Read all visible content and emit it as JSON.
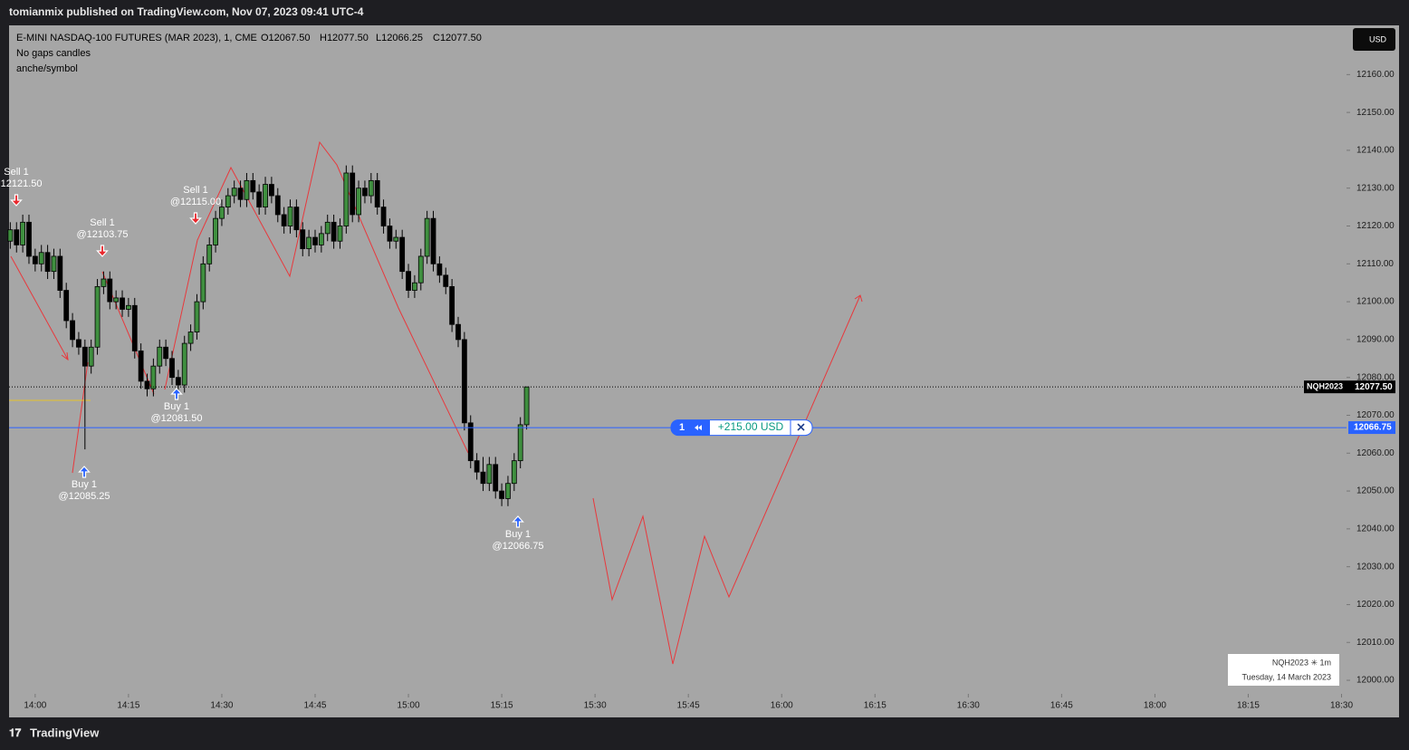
{
  "header": {
    "publisher": "tomianmix published on TradingView.com, Nov 07, 2023 09:41 UTC-4"
  },
  "chart_data": {
    "type": "candlestick",
    "legend": {
      "symbol": "E-MINI NASDAQ-100 FUTURES (MAR 2023), 1, CME",
      "open": "O12067.50",
      "high": "H12077.50",
      "low": "L12066.25",
      "close": "C12077.50"
    },
    "indicators": [
      "No gaps candles",
      "anche/symbol"
    ],
    "currency": "USD",
    "open": [
      12116,
      12119,
      12115,
      12121,
      12112,
      12110,
      12113,
      12108,
      12112,
      12103,
      12095,
      12090,
      12088,
      12083,
      12088,
      12104,
      12106,
      12100,
      12101,
      12098,
      12099,
      12087,
      12079,
      12077,
      12083,
      12088,
      12085,
      12080,
      12078,
      12089,
      12092,
      12100,
      12110,
      12115,
      12122,
      12125,
      12128,
      12130,
      12127,
      12132,
      12129,
      12125,
      12131,
      12128,
      12123,
      12120,
      12125,
      12119,
      12114,
      12117,
      12115,
      12118,
      12121,
      12116,
      12120,
      12134,
      12123,
      12130,
      12128,
      12132,
      12125,
      12120,
      12116,
      12117,
      12108,
      12103,
      12105,
      12112,
      12122,
      12110,
      12107,
      12104,
      12094,
      12090,
      12068,
      12058,
      12055,
      12052,
      12057,
      12050,
      12048,
      12052,
      12058,
      12067.5
    ],
    "high": [
      12121,
      12121,
      12123,
      12123,
      12114,
      12115,
      12115,
      12114,
      12114,
      12105,
      12097,
      12092,
      12090,
      12090,
      12106,
      12108,
      12108,
      12103,
      12103,
      12101,
      12101,
      12089,
      12081,
      12085,
      12090,
      12090,
      12087,
      12082,
      12091,
      12094,
      12102,
      12112,
      12117,
      12124,
      12127,
      12130,
      12132,
      12132,
      12134,
      12134,
      12131,
      12133,
      12133,
      12130,
      12125,
      12127,
      12127,
      12121,
      12119,
      12119,
      12120,
      12123,
      12123,
      12122,
      12136,
      12136,
      12132,
      12132,
      12134,
      12134,
      12127,
      12122,
      12119,
      12119,
      12110,
      12107,
      12114,
      12124,
      12124,
      12112,
      12109,
      12106,
      12096,
      12092,
      12070,
      12060,
      12059,
      12059,
      12059,
      12052,
      12054,
      12060,
      12069.5,
      12077.5
    ],
    "low": [
      12114,
      12113,
      12113,
      12110,
      12108,
      12108,
      12106,
      12106,
      12101,
      12093,
      12088,
      12086,
      12061,
      12081,
      12086,
      12102,
      12098,
      12098,
      12096,
      12096,
      12085,
      12077,
      12075,
      12075,
      12081,
      12083,
      12078,
      12076,
      12076,
      12087,
      12090,
      12098,
      12108,
      12113,
      12120,
      12123,
      12126,
      12125,
      12125,
      12127,
      12123,
      12123,
      12126,
      12121,
      12118,
      12118,
      12117,
      12112,
      12112,
      12113,
      12113,
      12116,
      12114,
      12114,
      12118,
      12121,
      12121,
      12126,
      12126,
      12123,
      12118,
      12114,
      12114,
      12106,
      12101,
      12101,
      12103,
      12110,
      12108,
      12105,
      12102,
      12092,
      12088,
      12066,
      12056,
      12053,
      12050,
      12050,
      12048,
      12046,
      12046,
      12050,
      12056,
      12066.25
    ],
    "close": [
      12119,
      12115,
      12121,
      12112,
      12110,
      12113,
      12108,
      12112,
      12103,
      12095,
      12090,
      12088,
      12083,
      12088,
      12104,
      12106,
      12100,
      12101,
      12098,
      12099,
      12087,
      12079,
      12077,
      12083,
      12088,
      12085,
      12080,
      12078,
      12089,
      12092,
      12100,
      12110,
      12115,
      12122,
      12125,
      12128,
      12130,
      12127,
      12132,
      12129,
      12125,
      12131,
      12128,
      12123,
      12120,
      12125,
      12119,
      12114,
      12117,
      12115,
      12118,
      12121,
      12116,
      12120,
      12134,
      12123,
      12130,
      12128,
      12132,
      12125,
      12120,
      12116,
      12117,
      12108,
      12103,
      12105,
      12112,
      12122,
      12110,
      12107,
      12104,
      12094,
      12090,
      12068,
      12058,
      12055,
      12052,
      12057,
      12050,
      12048,
      12052,
      12058,
      12067.5,
      12077.5
    ],
    "up_color": "#3f8f3f",
    "down_color": "#000000",
    "xlim": [
      -0.2,
      214.8
    ],
    "xticks": [
      {
        "value": 4,
        "label": "14:00"
      },
      {
        "value": 19,
        "label": "14:15"
      },
      {
        "value": 34,
        "label": "14:30"
      },
      {
        "value": 49,
        "label": "14:45"
      },
      {
        "value": 64,
        "label": "15:00"
      },
      {
        "value": 79,
        "label": "15:15"
      },
      {
        "value": 94,
        "label": "15:30"
      },
      {
        "value": 109,
        "label": "15:45"
      },
      {
        "value": 124,
        "label": "16:00"
      },
      {
        "value": 139,
        "label": "16:15"
      },
      {
        "value": 154,
        "label": "16:30"
      },
      {
        "value": 169,
        "label": "16:45"
      },
      {
        "value": 184,
        "label": "18:00"
      },
      {
        "value": 199,
        "label": "18:15"
      },
      {
        "value": 214,
        "label": "18:30"
      }
    ],
    "ylim": [
      11990.2,
      12173
    ],
    "yticks": [
      {
        "value": 12000,
        "label": "12000.00"
      },
      {
        "value": 12010,
        "label": "12010.00"
      },
      {
        "value": 12020,
        "label": "12020.00"
      },
      {
        "value": 12030,
        "label": "12030.00"
      },
      {
        "value": 12040,
        "label": "12040.00"
      },
      {
        "value": 12050,
        "label": "12050.00"
      },
      {
        "value": 12060,
        "label": "12060.00"
      },
      {
        "value": 12070,
        "label": "12070.00"
      },
      {
        "value": 12080,
        "label": "12080.00"
      },
      {
        "value": 12090,
        "label": "12090.00"
      },
      {
        "value": 12100,
        "label": "12100.00"
      },
      {
        "value": 12110,
        "label": "12110.00"
      },
      {
        "value": 12120,
        "label": "12120.00"
      },
      {
        "value": 12130,
        "label": "12130.00"
      },
      {
        "value": 12140,
        "label": "12140.00"
      },
      {
        "value": 12150,
        "label": "12150.00"
      },
      {
        "value": 12160,
        "label": "12160.00"
      }
    ],
    "last_price": {
      "symbol": "NQH2023",
      "value": 12077.5,
      "label": "12077.50"
    },
    "position": {
      "value": 12066.75,
      "label": "12066.75",
      "quantity": "1",
      "pnl": "+215.00 USD"
    },
    "trades": [
      {
        "text": "Sell 1",
        "price": "@12121.50"
      },
      {
        "text": "Sell 1",
        "price": "@12103.75"
      },
      {
        "text": "Buy 1",
        "price": "@12085.25"
      },
      {
        "text": "Sell 1",
        "price": "@12115.00"
      },
      {
        "text": "Buy 1",
        "price": "@12081.50"
      },
      {
        "text": "Buy 1",
        "price": "@12066.75"
      }
    ],
    "info_box": {
      "symbol": "NQH2023 ✳ 1m",
      "date": "Tuesday, 14 March 2023"
    }
  },
  "footer": {
    "brand": "TradingView"
  }
}
